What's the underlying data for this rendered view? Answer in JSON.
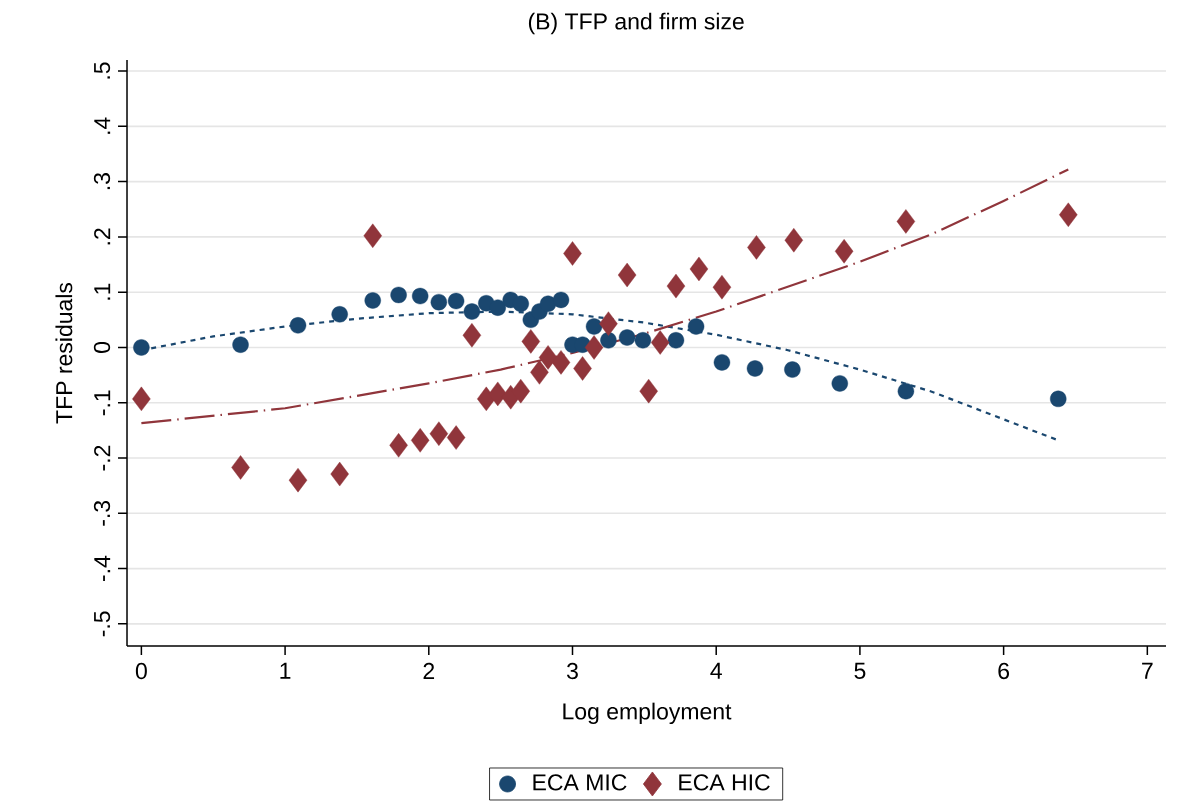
{
  "chart_data": {
    "type": "scatter",
    "title": "(B) TFP and firm size",
    "xlabel": "Log employment",
    "ylabel": "TFP residuals",
    "xlim": [
      -0.1,
      7.13
    ],
    "xticks": [
      0,
      1,
      2,
      3,
      4,
      5,
      6,
      7
    ],
    "ylim": [
      -0.54,
      0.52
    ],
    "yticks": [
      {
        "value": -0.5,
        "label": "-.5"
      },
      {
        "value": -0.4,
        "label": "-.4"
      },
      {
        "value": -0.3,
        "label": "-.3"
      },
      {
        "value": -0.2,
        "label": "-.2"
      },
      {
        "value": -0.1,
        "label": "-.1"
      },
      {
        "value": 0,
        "label": "0"
      },
      {
        "value": 0.1,
        "label": ".1"
      },
      {
        "value": 0.2,
        "label": ".2"
      },
      {
        "value": 0.3,
        "label": ".3"
      },
      {
        "value": 0.4,
        "label": ".4"
      },
      {
        "value": 0.5,
        "label": ".5"
      }
    ],
    "grid": "y",
    "legend": "bottom",
    "series": [
      {
        "name": "ECA MIC",
        "marker": "circle",
        "color": "#1a476f",
        "x": [
          0,
          0.69,
          1.09,
          1.38,
          1.61,
          1.79,
          1.94,
          2.07,
          2.19,
          2.3,
          2.4,
          2.48,
          2.57,
          2.64,
          2.71,
          2.77,
          2.83,
          2.92,
          3.0,
          3.07,
          3.15,
          3.25,
          3.38,
          3.49,
          3.61,
          3.72,
          3.86,
          4.04,
          4.27,
          4.53,
          4.86,
          5.32,
          6.38
        ],
        "values": [
          0,
          0.005,
          0.04,
          0.06,
          0.085,
          0.095,
          0.093,
          0.082,
          0.084,
          0.065,
          0.08,
          0.072,
          0.086,
          0.079,
          0.05,
          0.065,
          0.079,
          0.086,
          0.005,
          0.005,
          0.038,
          0.013,
          0.018,
          0.013,
          null,
          0.013,
          0.038,
          -0.027,
          -0.038,
          -0.04,
          -0.065,
          -0.079,
          -0.093
        ]
      },
      {
        "name": "ECA HIC",
        "marker": "diamond",
        "color": "#90353b",
        "x": [
          0,
          0.69,
          1.09,
          1.38,
          1.61,
          1.79,
          1.94,
          2.07,
          2.19,
          2.3,
          2.4,
          2.48,
          2.57,
          2.64,
          2.71,
          2.77,
          2.83,
          2.92,
          3.0,
          3.07,
          3.15,
          3.25,
          3.38,
          3.53,
          3.61,
          3.72,
          3.88,
          4.04,
          4.28,
          4.54,
          4.89,
          5.32,
          6.45
        ],
        "values": [
          -0.093,
          -0.217,
          -0.24,
          -0.229,
          0.202,
          -0.177,
          -0.168,
          -0.156,
          -0.163,
          0.022,
          -0.093,
          -0.084,
          -0.09,
          -0.079,
          0.011,
          -0.045,
          -0.018,
          -0.027,
          0.17,
          -0.038,
          0.0,
          0.043,
          0.131,
          -0.079,
          0.009,
          0.111,
          0.142,
          0.109,
          0.181,
          0.194,
          0.174,
          0.228,
          0.24
        ]
      },
      {
        "type": "line",
        "line_style": "dotted",
        "marker": "none",
        "color": "#1a476f",
        "x": [
          0,
          0.5,
          1,
          1.5,
          2,
          2.5,
          3,
          3.5,
          4,
          4.5,
          5,
          5.5,
          6,
          6.38
        ],
        "values": [
          -0.005,
          0.02,
          0.038,
          0.052,
          0.062,
          0.065,
          0.06,
          0.045,
          0.023,
          -0.005,
          -0.04,
          -0.08,
          -0.13,
          -0.168
        ]
      },
      {
        "type": "line",
        "line_style": "dashed",
        "marker": "none",
        "color": "#90353b",
        "x": [
          0,
          1,
          2,
          2.5,
          3,
          3.5,
          4,
          4.5,
          5,
          5.5,
          6,
          6.45
        ],
        "values": [
          -0.137,
          -0.11,
          -0.065,
          -0.04,
          -0.01,
          0.025,
          0.065,
          0.11,
          0.155,
          0.205,
          0.265,
          0.322
        ]
      }
    ]
  }
}
